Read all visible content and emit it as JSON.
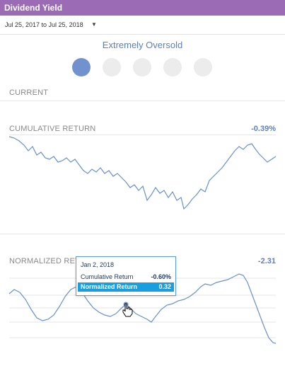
{
  "window": {
    "title": "Dividend Yield"
  },
  "date_range": {
    "label": "Jul 25, 2017 to Jul 25, 2018"
  },
  "signal": {
    "title": "Extremely Oversold",
    "dots": [
      {
        "active": true
      },
      {
        "active": false
      },
      {
        "active": false
      },
      {
        "active": false
      },
      {
        "active": false
      }
    ]
  },
  "sections": {
    "current": "CURRENT",
    "cumulative": {
      "label": "CUMULATIVE RETURN",
      "value": "-0.39%"
    },
    "normalized": {
      "label": "NORMALIZED RETURN",
      "value": "-2.31"
    }
  },
  "tooltip": {
    "date": "Jan 2, 2018",
    "rows": [
      {
        "name": "Cumulative Return",
        "value": "-0.60%"
      },
      {
        "name": "Normalized Return",
        "value": "0.32"
      }
    ]
  },
  "colors": {
    "header": "#9b6bb5",
    "accent": "#5b7fc4",
    "line": "#6a8fd1",
    "tooltip_highlight": "#1a9ee0"
  },
  "icons": {
    "dropdown": "caret-down-icon",
    "cursor": "hand-pointer-icon"
  }
}
